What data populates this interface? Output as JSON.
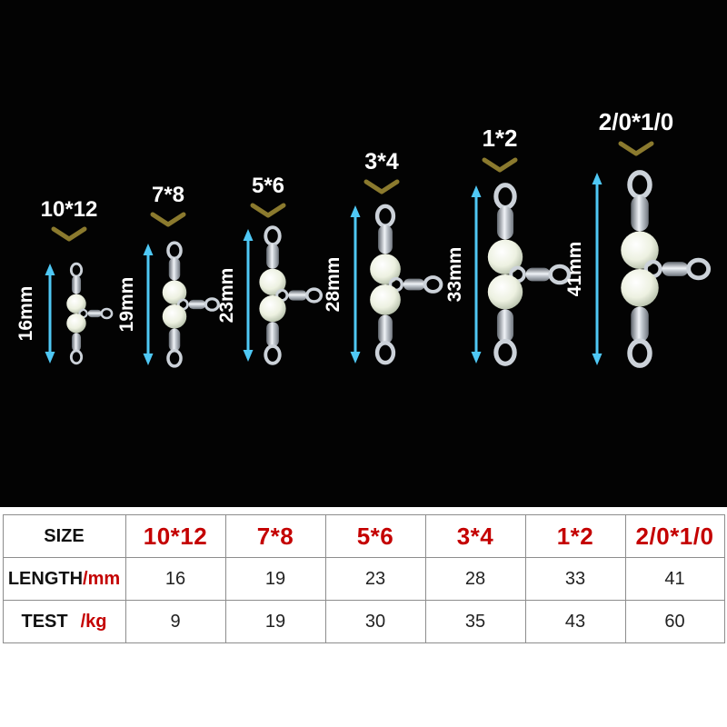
{
  "figure": {
    "products": [
      {
        "size_label": "10*12",
        "length_label": "16mm"
      },
      {
        "size_label": "7*8",
        "length_label": "19mm"
      },
      {
        "size_label": "5*6",
        "length_label": "23mm"
      },
      {
        "size_label": "3*4",
        "length_label": "28mm"
      },
      {
        "size_label": "1*2",
        "length_label": "33mm"
      },
      {
        "size_label": "2/0*1/0",
        "length_label": "41mm"
      }
    ],
    "colors": {
      "background": "#030303",
      "arrow": "#4fc8f5",
      "size_label": "#ffffff",
      "length_label": "#ffffff",
      "chevron": "#8b7a2e"
    }
  },
  "table": {
    "accent_color": "#c40000",
    "rows": [
      {
        "label": "SIZE",
        "unit": "",
        "values": [
          "10*12",
          "7*8",
          "5*6",
          "3*4",
          "1*2",
          "2/0*1/0"
        ]
      },
      {
        "label": "LENGTH",
        "unit": "/mm",
        "values": [
          "16",
          "19",
          "23",
          "28",
          "33",
          "41"
        ]
      },
      {
        "label": "TEST",
        "unit": "/kg",
        "values": [
          "9",
          "19",
          "30",
          "35",
          "43",
          "60"
        ]
      }
    ]
  }
}
